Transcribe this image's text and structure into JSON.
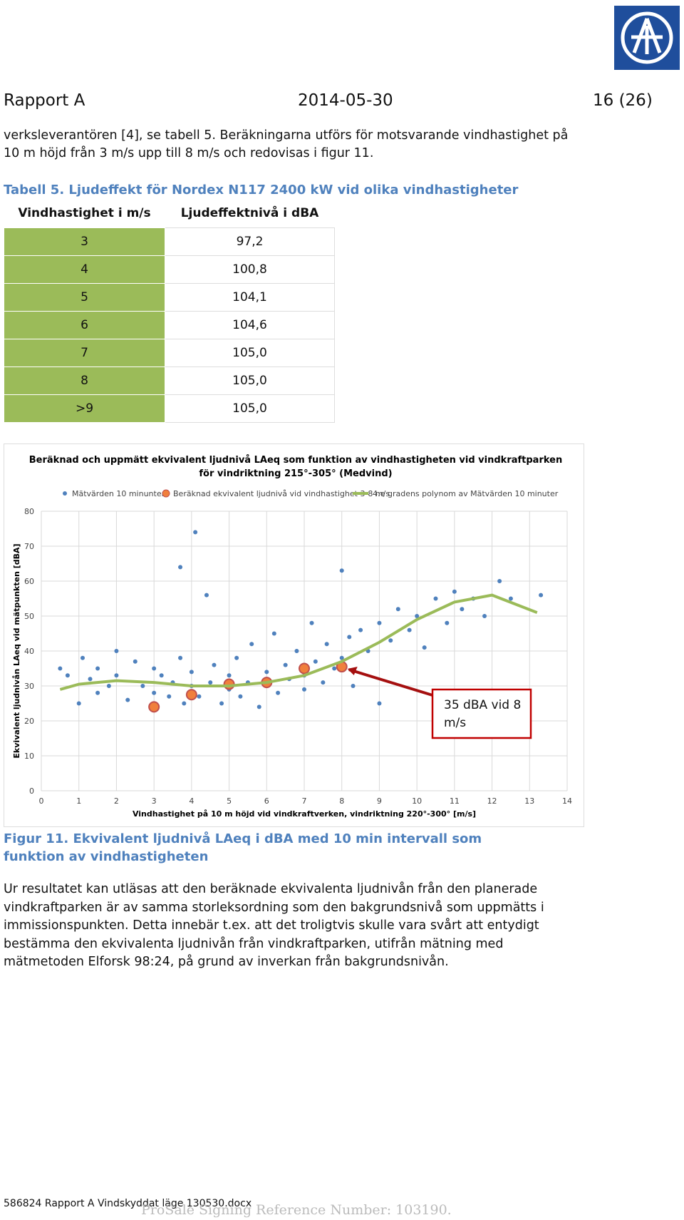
{
  "header": {
    "title": "Rapport A",
    "date": "2014-05-30",
    "page": "16 (26)"
  },
  "intro": "verksleverantören [4], se tabell 5. Beräkningarna utförs för motsvarande vindhastighet på 10 m höjd från 3 m/s upp till 8 m/s och redovisas i figur 11.",
  "table": {
    "caption": "Tabell 5. Ljudeffekt för Nordex N117 2400 kW vid olika vindhastigheter",
    "columns": [
      "Vindhastighet i m/s",
      "Ljudeffektnivå i dBA"
    ],
    "rows": [
      [
        "3",
        "97,2"
      ],
      [
        "4",
        "100,8"
      ],
      [
        "5",
        "104,1"
      ],
      [
        "6",
        "104,6"
      ],
      [
        "7",
        "105,0"
      ],
      [
        "8",
        "105,0"
      ],
      [
        ">9",
        "105,0"
      ]
    ]
  },
  "chart_data": {
    "type": "scatter",
    "title": [
      "Beräknad och uppmätt ekvivalent ljudnivå LAeq som funktion av vindhastigheten vid vindkraftparken",
      "för vindriktning 215°-305° (Medvind)"
    ],
    "x_label": "Vindhastighet på 10 m höjd vid vindkraftverken, vindriktning 220°-300° [m/s]",
    "y_label": "Ekvivalent ljudnivån LAeq vid mätpunkten [dBA]",
    "xlim": [
      0,
      14
    ],
    "xticks": [
      0,
      1,
      2,
      3,
      4,
      5,
      6,
      7,
      8,
      9,
      10,
      11,
      12,
      13,
      14
    ],
    "ylim": [
      0,
      80
    ],
    "yticks": [
      0,
      10,
      20,
      30,
      40,
      50,
      60,
      70,
      80
    ],
    "grid": true,
    "series": [
      {
        "name": "Mätvärden 10 minunter",
        "color": "#4f81bd",
        "mode": "points",
        "x": [
          0.5,
          0.7,
          1,
          1.1,
          1.3,
          1.5,
          1.5,
          1.8,
          2,
          2,
          2.3,
          2.5,
          2.7,
          3,
          3,
          3.2,
          3.4,
          3.5,
          3.7,
          3.7,
          3.8,
          4,
          4,
          4.1,
          4.2,
          4.4,
          4.5,
          4.6,
          4.8,
          5,
          5,
          5.2,
          5.3,
          5.5,
          5.6,
          5.8,
          6,
          6,
          6.2,
          6.3,
          6.5,
          6.6,
          6.8,
          7,
          7,
          7.2,
          7.3,
          7.5,
          7.6,
          7.8,
          8,
          8,
          8.2,
          8.3,
          8.5,
          8.7,
          9,
          9,
          9.3,
          9.5,
          9.8,
          10,
          10.2,
          10.5,
          10.8,
          11,
          11.2,
          11.5,
          11.8,
          12.2,
          12.5,
          13.3
        ],
        "values": [
          35,
          33,
          25,
          38,
          32,
          35,
          28,
          30,
          40,
          33,
          26,
          37,
          30,
          35,
          28,
          33,
          27,
          31,
          38,
          64,
          25,
          30,
          34,
          74,
          27,
          56,
          31,
          36,
          25,
          33,
          29,
          38,
          27,
          31,
          42,
          24,
          34,
          30,
          45,
          28,
          36,
          32,
          40,
          33,
          29,
          48,
          37,
          31,
          42,
          35,
          38,
          63,
          44,
          30,
          46,
          40,
          48,
          25,
          43,
          52,
          46,
          50,
          41,
          55,
          48,
          57,
          52,
          55,
          50,
          60,
          55,
          56
        ]
      },
      {
        "name": "Beräknad ekvivalent ljudnivå vid vindhastighet 3-8 m/s",
        "color": "#f07f3c",
        "mode": "big",
        "x": [
          3,
          4,
          5,
          6,
          7,
          8
        ],
        "values": [
          24,
          27.5,
          30.5,
          31,
          35,
          35.5
        ]
      },
      {
        "name": "4:e gradens polynom av Mätvärden 10 minuter",
        "color": "#9bbb59",
        "mode": "line",
        "x": [
          0.5,
          1,
          2,
          3,
          4,
          5,
          6,
          7,
          8,
          9,
          10,
          11,
          12,
          13.2
        ],
        "values": [
          29,
          30.5,
          31.5,
          31,
          30,
          30,
          31,
          33,
          37,
          42.5,
          49,
          54,
          56,
          51
        ]
      }
    ],
    "annotation": "35 dBA vid 8 m/s"
  },
  "caption": "Figur 11. Ekvivalent ljudnivå LAeq i dBA med 10 min intervall som funktion av vindhastigheten",
  "body": "Ur resultatet kan utläsas att den beräknade ekvivalenta ljudnivån från den planerade vindkraftparken är av samma storleksordning som den bakgrundsnivå som uppmätts i immissionspunkten. Detta innebär t.ex. att det troligtvis skulle vara svårt att entydigt bestämma den ekvivalenta ljudnivån från vindkraftparken, utifrån mätning med mätmetoden Elforsk 98:24, på grund av inverkan från bakgrundsnivån.",
  "footer": {
    "file": "586824 Rapport A Vindskyddat läge 130530.docx",
    "watermark": "ProSale Signing Reference Number: 103190."
  }
}
